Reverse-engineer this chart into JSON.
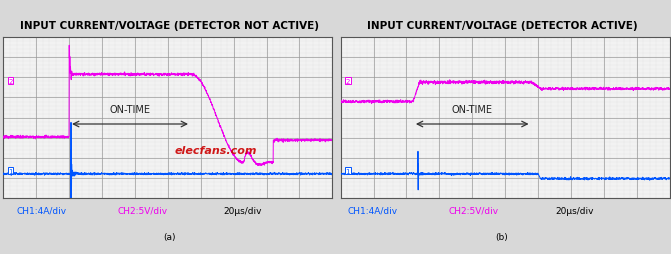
{
  "title_a": "INPUT CURRENT/VOLTAGE (DETECTOR NOT ACTIVE)",
  "title_b": "INPUT CURRENT/VOLTAGE (DETECTOR ACTIVE)",
  "subtitle_a": "(a)",
  "subtitle_b": "(b)",
  "ch1_label": "CH1:4A/div",
  "ch2_label": "CH2:5V/div",
  "time_label": "20μs/div",
  "on_time_label": "ON-TIME",
  "ch1_color": "#0055ff",
  "ch2_color": "#ee00ee",
  "bg_color": "#f0f0f0",
  "grid_major_color": "#999999",
  "grid_minor_color": "#cccccc",
  "n_points": 2000,
  "elecfans_color": "#cc0000",
  "title_fontsize": 7.5,
  "label_fontsize": 6.5,
  "annotation_fontsize": 7,
  "fig_bg": "#d8d8d8",
  "panel_bg": "#f2f2f2"
}
